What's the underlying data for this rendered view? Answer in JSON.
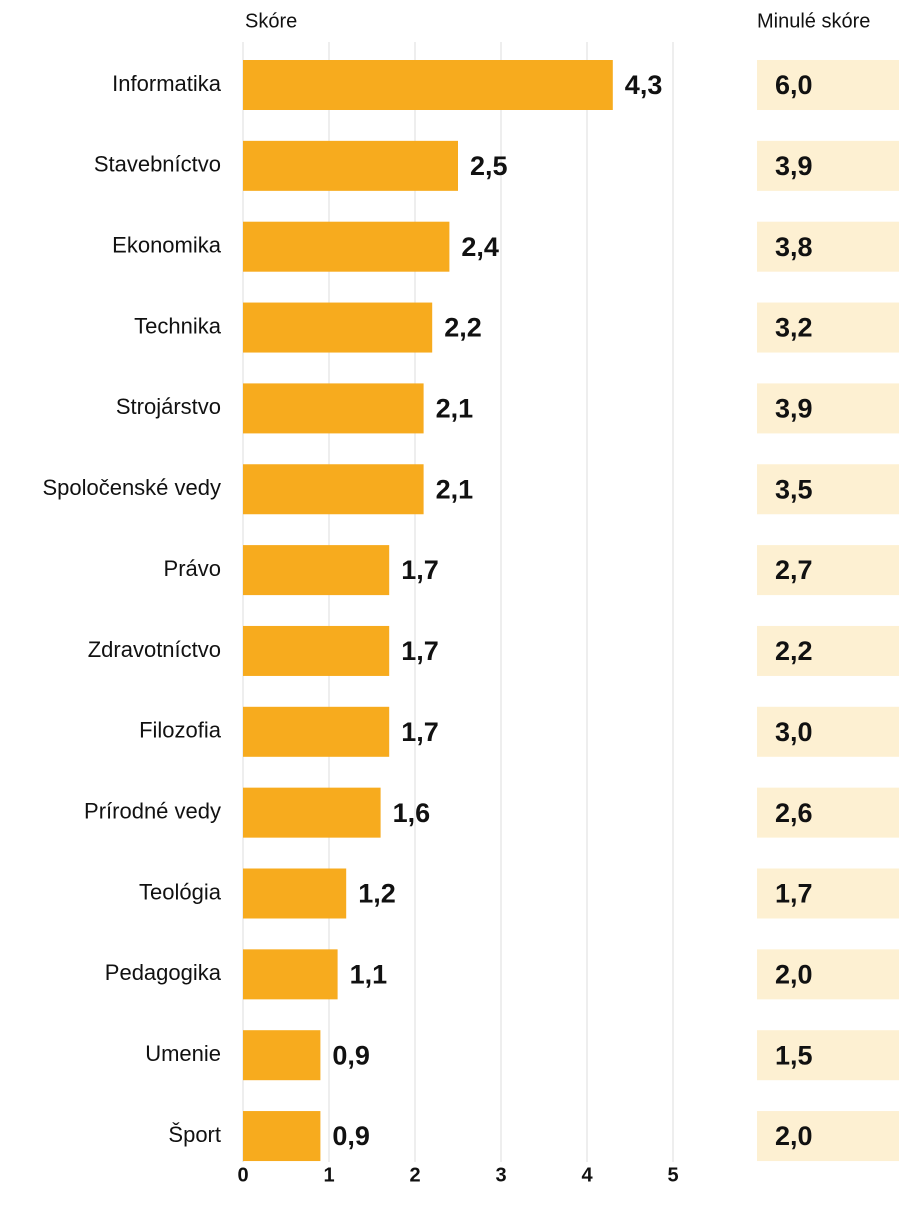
{
  "chart_data": {
    "type": "bar",
    "orientation": "horizontal",
    "categories": [
      "Informatika",
      "Stavebníctvo",
      "Ekonomika",
      "Technika",
      "Strojárstvo",
      "Spoločenské vedy",
      "Právo",
      "Zdravotníctvo",
      "Filozofia",
      "Prírodné vedy",
      "Teológia",
      "Pedagogika",
      "Umenie",
      "Šport"
    ],
    "series": [
      {
        "name": "Skóre",
        "color": "#f7ab1e",
        "values": [
          4.3,
          2.5,
          2.4,
          2.2,
          2.1,
          2.1,
          1.7,
          1.7,
          1.7,
          1.6,
          1.2,
          1.1,
          0.9,
          0.9
        ],
        "value_labels": [
          "4,3",
          "2,5",
          "2,4",
          "2,2",
          "2,1",
          "2,1",
          "1,7",
          "1,7",
          "1,7",
          "1,6",
          "1,2",
          "1,1",
          "0,9",
          "0,9"
        ]
      },
      {
        "name": "Minulé skóre",
        "color": "#fdf0d2",
        "values": [
          6.0,
          3.9,
          3.8,
          3.2,
          3.9,
          3.5,
          2.7,
          2.2,
          3.0,
          2.6,
          1.7,
          2.0,
          1.5,
          2.0
        ],
        "value_labels": [
          "6,0",
          "3,9",
          "3,8",
          "3,2",
          "3,9",
          "3,5",
          "2,7",
          "2,2",
          "3,0",
          "2,6",
          "1,7",
          "2,0",
          "1,5",
          "2,0"
        ]
      }
    ],
    "xlim": [
      0,
      5
    ],
    "xticks": [
      0,
      1,
      2,
      3,
      4,
      5
    ],
    "grid": true
  }
}
